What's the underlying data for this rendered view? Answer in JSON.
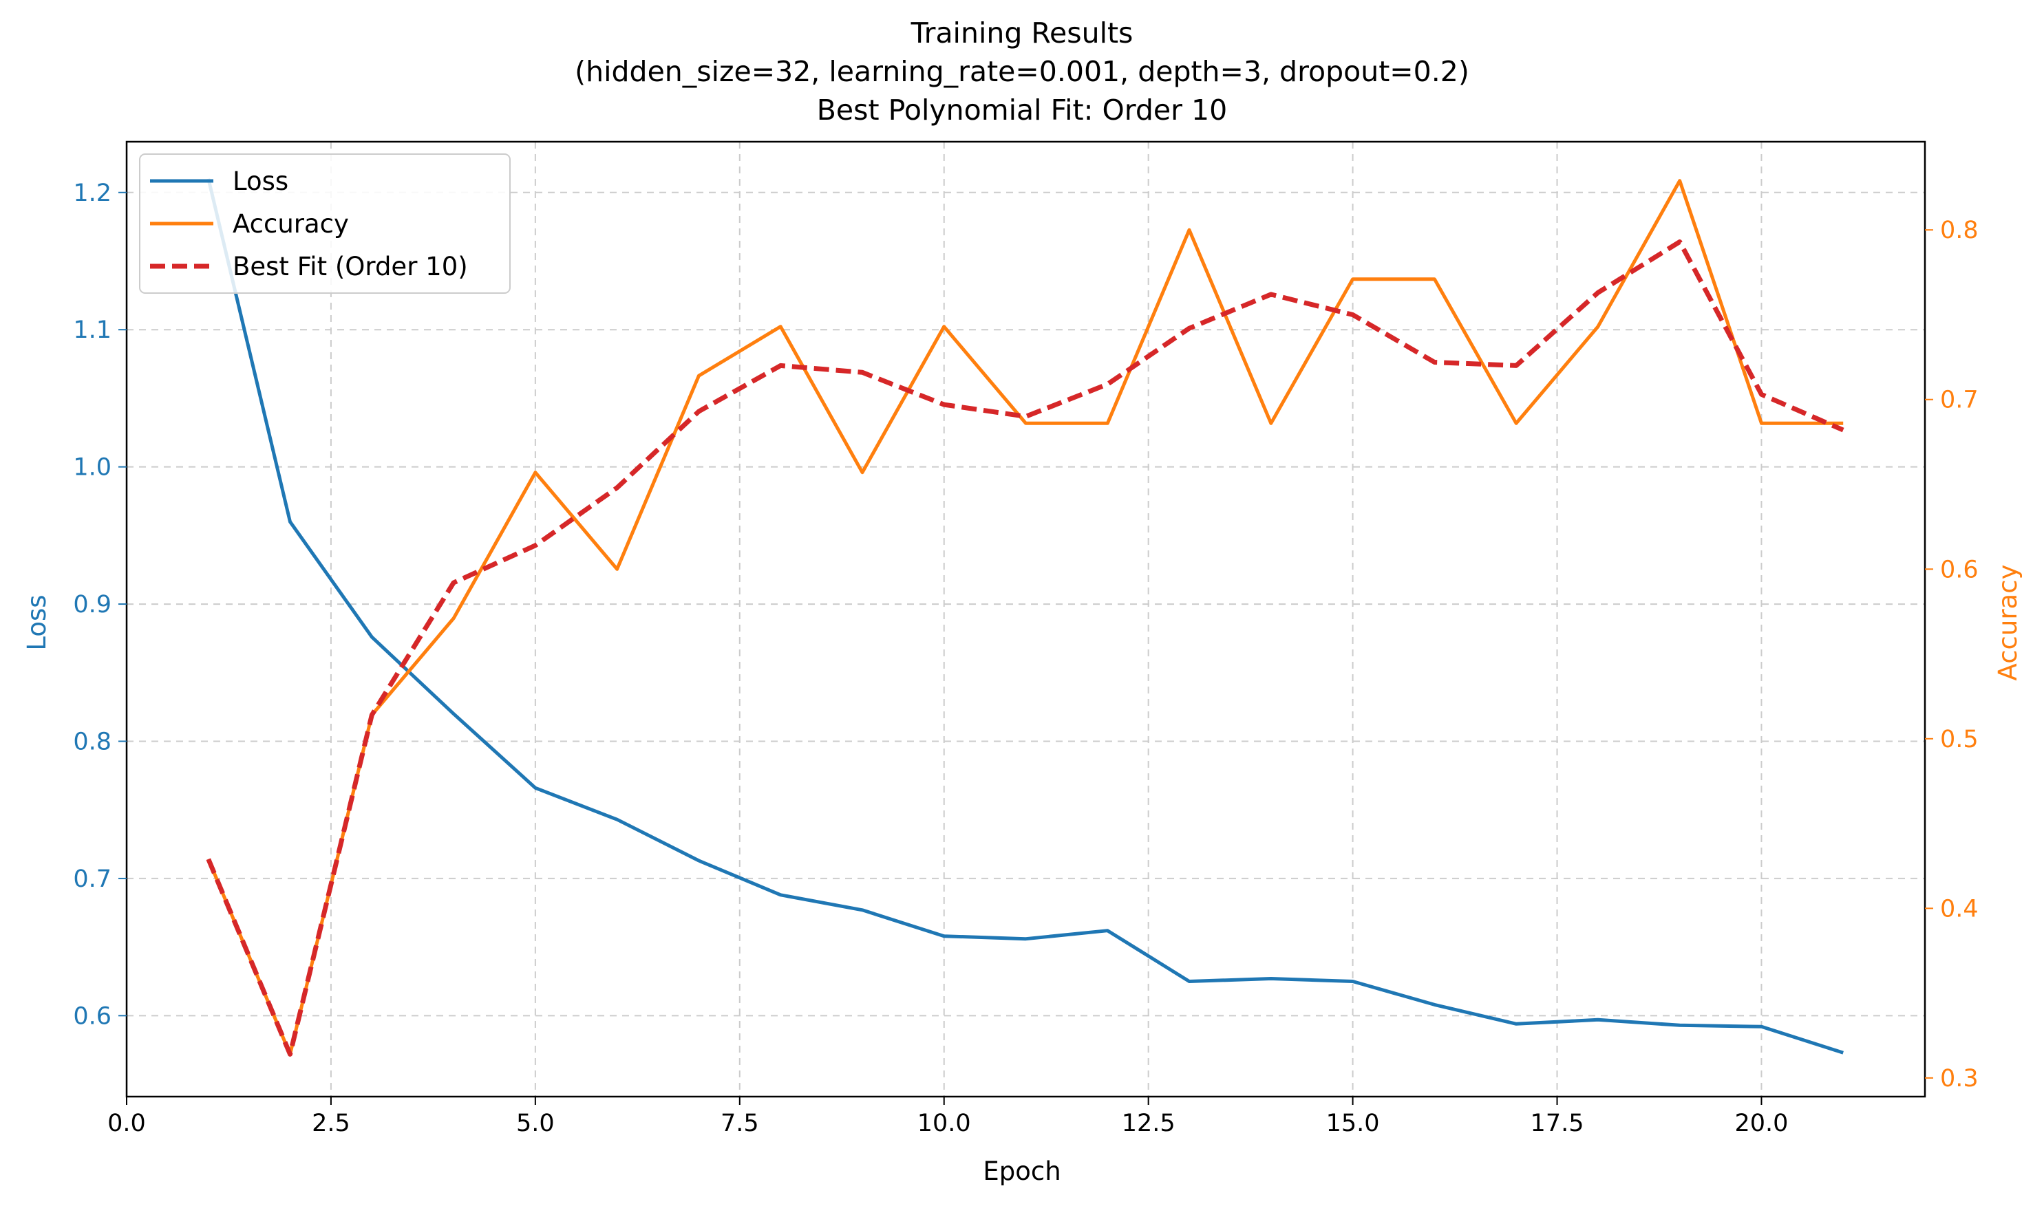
{
  "chart_data": {
    "type": "line",
    "title": "Training Results",
    "subtitle_lines": [
      "(hidden_size=32, learning_rate=0.001, depth=3, dropout=0.2)",
      "Best Polynomial Fit: Order 10"
    ],
    "xlabel": "Epoch",
    "ylabel_left": "Loss",
    "ylabel_right": "Accuracy",
    "xlim": [
      0,
      22
    ],
    "ylim_left": [
      0.541,
      1.237
    ],
    "ylim_right": [
      0.289,
      0.852
    ],
    "xticks": [
      0.0,
      2.5,
      5.0,
      7.5,
      10.0,
      12.5,
      15.0,
      17.5,
      20.0
    ],
    "xtick_labels": [
      "0.0",
      "2.5",
      "5.0",
      "7.5",
      "10.0",
      "12.5",
      "15.0",
      "17.5",
      "20.0"
    ],
    "yticks_left": [
      0.6,
      0.7,
      0.8,
      0.9,
      1.0,
      1.1,
      1.2
    ],
    "ytick_labels_left": [
      "0.6",
      "0.7",
      "0.8",
      "0.9",
      "1.0",
      "1.1",
      "1.2"
    ],
    "yticks_right": [
      0.3,
      0.4,
      0.5,
      0.6,
      0.7,
      0.8
    ],
    "ytick_labels_right": [
      "0.3",
      "0.4",
      "0.5",
      "0.6",
      "0.7",
      "0.8"
    ],
    "grid": true,
    "legend_position": "top-left",
    "x": [
      1,
      2,
      3,
      4,
      5,
      6,
      7,
      8,
      9,
      10,
      11,
      12,
      13,
      14,
      15,
      16,
      17,
      18,
      19,
      20,
      21
    ],
    "series": [
      {
        "name": "Loss",
        "axis": "left",
        "color": "#1f77b4",
        "style": "solid",
        "values": [
          1.21,
          0.96,
          0.876,
          0.82,
          0.766,
          0.743,
          0.713,
          0.688,
          0.677,
          0.658,
          0.656,
          0.662,
          0.625,
          0.627,
          0.625,
          0.608,
          0.594,
          0.597,
          0.593,
          0.592,
          0.573
        ]
      },
      {
        "name": "Accuracy",
        "axis": "right",
        "color": "#ff7f0e",
        "style": "solid",
        "values": [
          0.429,
          0.314,
          0.514,
          0.571,
          0.657,
          0.6,
          0.714,
          0.743,
          0.657,
          0.743,
          0.686,
          0.686,
          0.8,
          0.686,
          0.771,
          0.771,
          0.686,
          0.743,
          0.829,
          0.686,
          0.686
        ]
      },
      {
        "name": "Best Fit (Order 10)",
        "axis": "right",
        "color": "#d62728",
        "style": "dashed",
        "values": [
          0.429,
          0.314,
          0.514,
          0.592,
          0.614,
          0.648,
          0.693,
          0.72,
          0.716,
          0.697,
          0.69,
          0.709,
          0.742,
          0.762,
          0.75,
          0.722,
          0.72,
          0.763,
          0.793,
          0.703,
          0.682
        ]
      }
    ],
    "colors": {
      "left_axis": "#1f77b4",
      "right_axis": "#ff7f0e",
      "grid": "#cccccc"
    }
  }
}
